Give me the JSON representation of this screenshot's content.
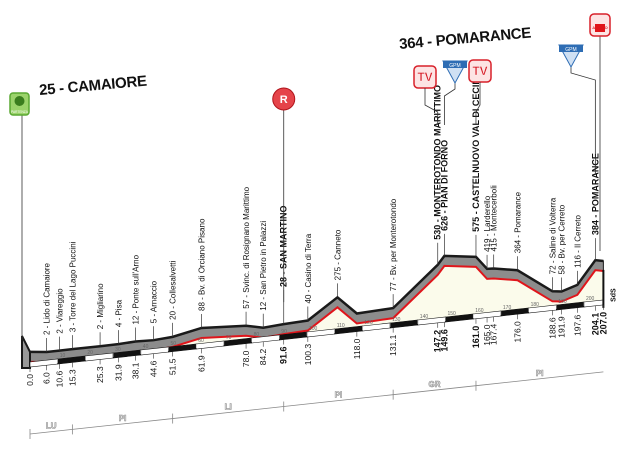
{
  "header": {
    "start_title": "25 - CAMAIORE",
    "finish_title": "364 - POMARANCE"
  },
  "icons": {
    "start": {
      "name": "partenza-flag-icon",
      "text": "PARTENZA",
      "color": "#5aa832"
    },
    "sprint": {
      "name": "sprint-r-icon",
      "text": "R",
      "color": "#d8202a"
    },
    "tv1": {
      "name": "tv-icon",
      "text": "TV",
      "color": "#d8202a"
    },
    "gpm1": {
      "name": "gpm-triangle-icon",
      "text": "GPM",
      "color": "#2e6db4"
    },
    "tv2": {
      "name": "tv-icon",
      "text": "TV",
      "color": "#d8202a"
    },
    "gpm2": {
      "name": "gpm-triangle-icon",
      "text": "GPM",
      "color": "#2e6db4"
    },
    "finish": {
      "name": "arrivo-icon",
      "text": "ARRIVO",
      "color": "#d8202a"
    }
  },
  "chart_data": {
    "type": "area",
    "xlabel": "",
    "ylabel": "",
    "xlim": [
      0,
      207
    ],
    "x_ticks": [
      10,
      20,
      30,
      40,
      50,
      60,
      70,
      80,
      90,
      100,
      110,
      120,
      130,
      140,
      150,
      160,
      170,
      180,
      190,
      200
    ],
    "points": [
      {
        "km": 0.0,
        "elev": 25,
        "label": "25 - CAMAIORE",
        "km_label": "0.0"
      },
      {
        "km": 6.0,
        "elev": 2,
        "label": "2 - Lido di Camaiore",
        "km_label": "6.0"
      },
      {
        "km": 10.6,
        "elev": 2,
        "label": "2 - Viareggio",
        "km_label": "10.6"
      },
      {
        "km": 15.3,
        "elev": 3,
        "label": "3 - Torre del Lago Puccini",
        "km_label": "15.3"
      },
      {
        "km": 25.3,
        "elev": 2,
        "label": "2 - Migliarino",
        "km_label": "25.3"
      },
      {
        "km": 31.9,
        "elev": 4,
        "label": "4 - Pisa",
        "km_label": "31.9"
      },
      {
        "km": 38.1,
        "elev": 12,
        "label": "12 - Ponte sull'Arno",
        "km_label": "38.1"
      },
      {
        "km": 44.6,
        "elev": 5,
        "label": "5 - Arnaccio",
        "km_label": "44.6"
      },
      {
        "km": 51.5,
        "elev": 20,
        "label": "20 - Collesalvetti",
        "km_label": "51.5"
      },
      {
        "km": 61.9,
        "elev": 88,
        "label": "88 - Bv. di Orciano Pisano",
        "km_label": "61.9"
      },
      {
        "km": 78.0,
        "elev": 57,
        "label": "57 - Svinc. di Rosignano Marittimo",
        "km_label": "78.0"
      },
      {
        "km": 84.2,
        "elev": 12,
        "label": "12 - San Pietro in Palazzi",
        "km_label": "84.2"
      },
      {
        "km": 91.6,
        "elev": 28,
        "label": "28 - SAN MARTINO",
        "km_label": "91.6",
        "bold": true
      },
      {
        "km": 100.3,
        "elev": 40,
        "label": "40 - Casino di Terra",
        "km_label": "100.3"
      },
      {
        "km": 111.0,
        "elev": 275,
        "label": "275 - Canneto",
        "km_label": ""
      },
      {
        "km": 118.0,
        "elev": 60,
        "label": "",
        "km_label": "118.0"
      },
      {
        "km": 131.1,
        "elev": 77,
        "label": "77 - Bv. per Monterotondo",
        "km_label": "131.1"
      },
      {
        "km": 147.2,
        "elev": 530,
        "label": "530 - MONTEROTONDO MARITTIMO",
        "km_label": "147.2",
        "bold": true
      },
      {
        "km": 149.6,
        "elev": 626,
        "label": "626 - PIAN DI FORNO",
        "km_label": "149.6",
        "bold": true
      },
      {
        "km": 161.0,
        "elev": 575,
        "label": "575 - CASTELNUOVO VAL DI CECINA",
        "km_label": "161.0",
        "bold": true
      },
      {
        "km": 165.0,
        "elev": 419,
        "label": "419 - Larderello",
        "km_label": "165.0"
      },
      {
        "km": 167.4,
        "elev": 415,
        "label": "415 - Montecerboli",
        "km_label": "167.4"
      },
      {
        "km": 176.0,
        "elev": 364,
        "label": "364 - Pomarance",
        "km_label": "176.0"
      },
      {
        "km": 188.6,
        "elev": 72,
        "label": "72 - Saline di Volterra",
        "km_label": "188.6"
      },
      {
        "km": 191.9,
        "elev": 58,
        "label": "58 - Bv. per Cerreto",
        "km_label": "191.9"
      },
      {
        "km": 197.6,
        "elev": 116,
        "label": "116 - Il Cerreto",
        "km_label": "197.6"
      },
      {
        "km": 204.1,
        "elev": 384,
        "label": "384 - POMARANCE",
        "km_label": "204.1",
        "bold": true
      },
      {
        "km": 207.0,
        "elev": 364,
        "label": "",
        "km_label": "207.0",
        "bold": true
      }
    ],
    "regions": [
      {
        "code": "LU",
        "from": 0,
        "to": 15.3
      },
      {
        "code": "PI",
        "from": 15.3,
        "to": 51.5
      },
      {
        "code": "LI",
        "from": 51.5,
        "to": 91.6
      },
      {
        "code": "PI",
        "from": 91.6,
        "to": 131.1
      },
      {
        "code": "GR",
        "from": 131.1,
        "to": 161.0
      },
      {
        "code": "PI",
        "from": 161.0,
        "to": 207.0
      }
    ],
    "finish_marker": "SdS",
    "colors": {
      "profile_band": "#8c8c8c",
      "road_line": "#e0151b",
      "fill": "#fbfbeb",
      "outline": "#1a1a1a"
    }
  }
}
